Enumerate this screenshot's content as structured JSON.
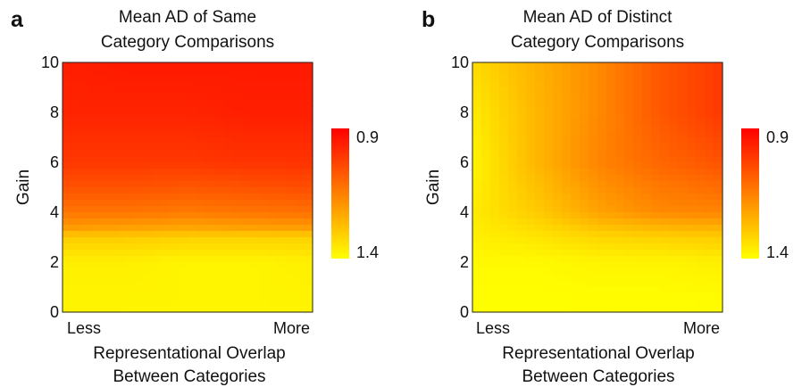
{
  "chart_data": [
    {
      "type": "heatmap",
      "panel_label": "a",
      "title_lines": [
        "Mean AD of Same",
        "Category Comparisons"
      ],
      "ylabel": "Gain",
      "yticks": [
        "0",
        "2",
        "4",
        "6",
        "8",
        "10"
      ],
      "ylim": [
        0,
        10
      ],
      "xticks": [
        "Less",
        "More"
      ],
      "xlabel_lines": [
        "Representational Overlap",
        "Between Categories"
      ],
      "colorbar": {
        "top_label": "0.9",
        "bottom_label": "1.4",
        "top_value": 0.9,
        "bottom_value": 1.4,
        "colors": [
          "#ff0000",
          "#ffff00"
        ]
      },
      "y_levels": [
        0,
        2,
        3,
        3.4,
        4,
        5,
        6,
        8,
        10
      ],
      "x_positions": [
        0,
        0.25,
        0.5,
        0.75,
        1
      ],
      "z": [
        [
          1.38,
          1.38,
          1.38,
          1.38,
          1.38
        ],
        [
          1.37,
          1.37,
          1.38,
          1.38,
          1.37
        ],
        [
          1.3,
          1.3,
          1.31,
          1.31,
          1.31
        ],
        [
          1.2,
          1.21,
          1.22,
          1.21,
          1.2
        ],
        [
          1.13,
          1.13,
          1.14,
          1.13,
          1.12
        ],
        [
          1.06,
          1.06,
          1.07,
          1.06,
          1.05
        ],
        [
          1.01,
          1.01,
          1.01,
          1.0,
          1.0
        ],
        [
          0.97,
          0.97,
          0.97,
          0.96,
          0.96
        ],
        [
          0.96,
          0.95,
          0.95,
          0.95,
          0.95
        ]
      ]
    },
    {
      "type": "heatmap",
      "panel_label": "b",
      "title_lines": [
        "Mean AD of Distinct",
        "Category Comparisons"
      ],
      "ylabel": "Gain",
      "yticks": [
        "0",
        "2",
        "4",
        "6",
        "8",
        "10"
      ],
      "ylim": [
        0,
        10
      ],
      "xticks": [
        "Less",
        "More"
      ],
      "xlabel_lines": [
        "Representational Overlap",
        "Between Categories"
      ],
      "colorbar": {
        "top_label": "0.9",
        "bottom_label": "1.4",
        "top_value": 0.9,
        "bottom_value": 1.4,
        "colors": [
          "#ff0000",
          "#ffff00"
        ]
      },
      "y_levels": [
        0,
        2,
        3,
        4,
        6,
        8,
        10
      ],
      "x_positions": [
        0,
        0.25,
        0.5,
        0.75,
        1
      ],
      "z": [
        [
          1.4,
          1.4,
          1.4,
          1.4,
          1.4
        ],
        [
          1.39,
          1.39,
          1.38,
          1.38,
          1.37
        ],
        [
          1.37,
          1.35,
          1.32,
          1.31,
          1.3
        ],
        [
          1.36,
          1.3,
          1.22,
          1.17,
          1.16
        ],
        [
          1.38,
          1.26,
          1.16,
          1.1,
          1.06
        ],
        [
          1.36,
          1.26,
          1.17,
          1.07,
          1.01
        ],
        [
          1.33,
          1.25,
          1.17,
          1.07,
          1.01
        ]
      ]
    }
  ]
}
